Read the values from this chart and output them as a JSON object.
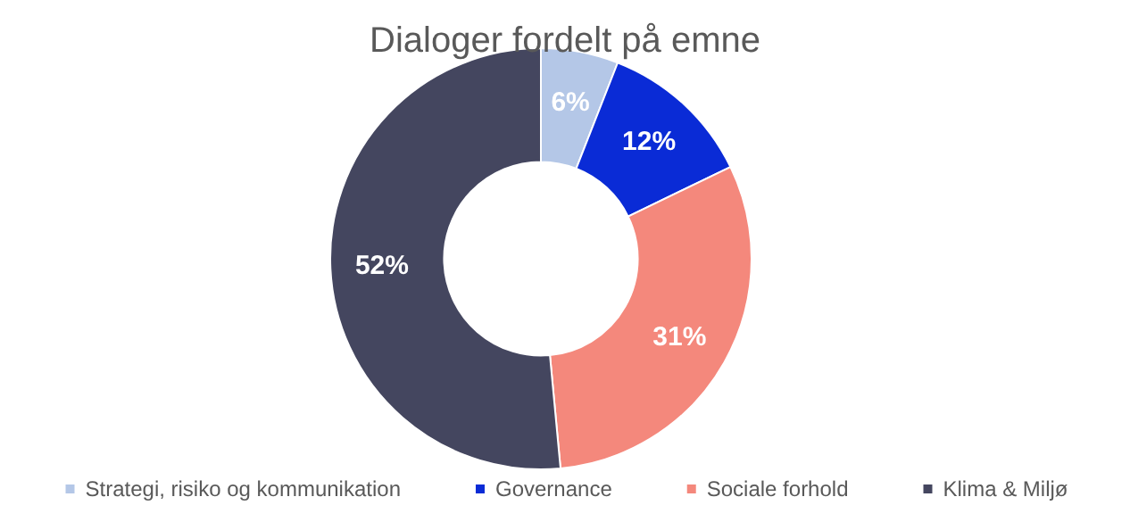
{
  "chart_data": {
    "type": "donut",
    "title": "Dialoger fordelt på emne",
    "categories": [
      "Strategi, risiko og kommunikation",
      "Governance",
      "Sociale forhold",
      "Klima & Miljø"
    ],
    "values": [
      6,
      12,
      31,
      52
    ],
    "value_labels": [
      "6%",
      "12%",
      "31%",
      "52%"
    ],
    "colors": [
      "#b4c7e7",
      "#0a2bd6",
      "#f4887c",
      "#44465f"
    ],
    "legend": "bottom"
  }
}
